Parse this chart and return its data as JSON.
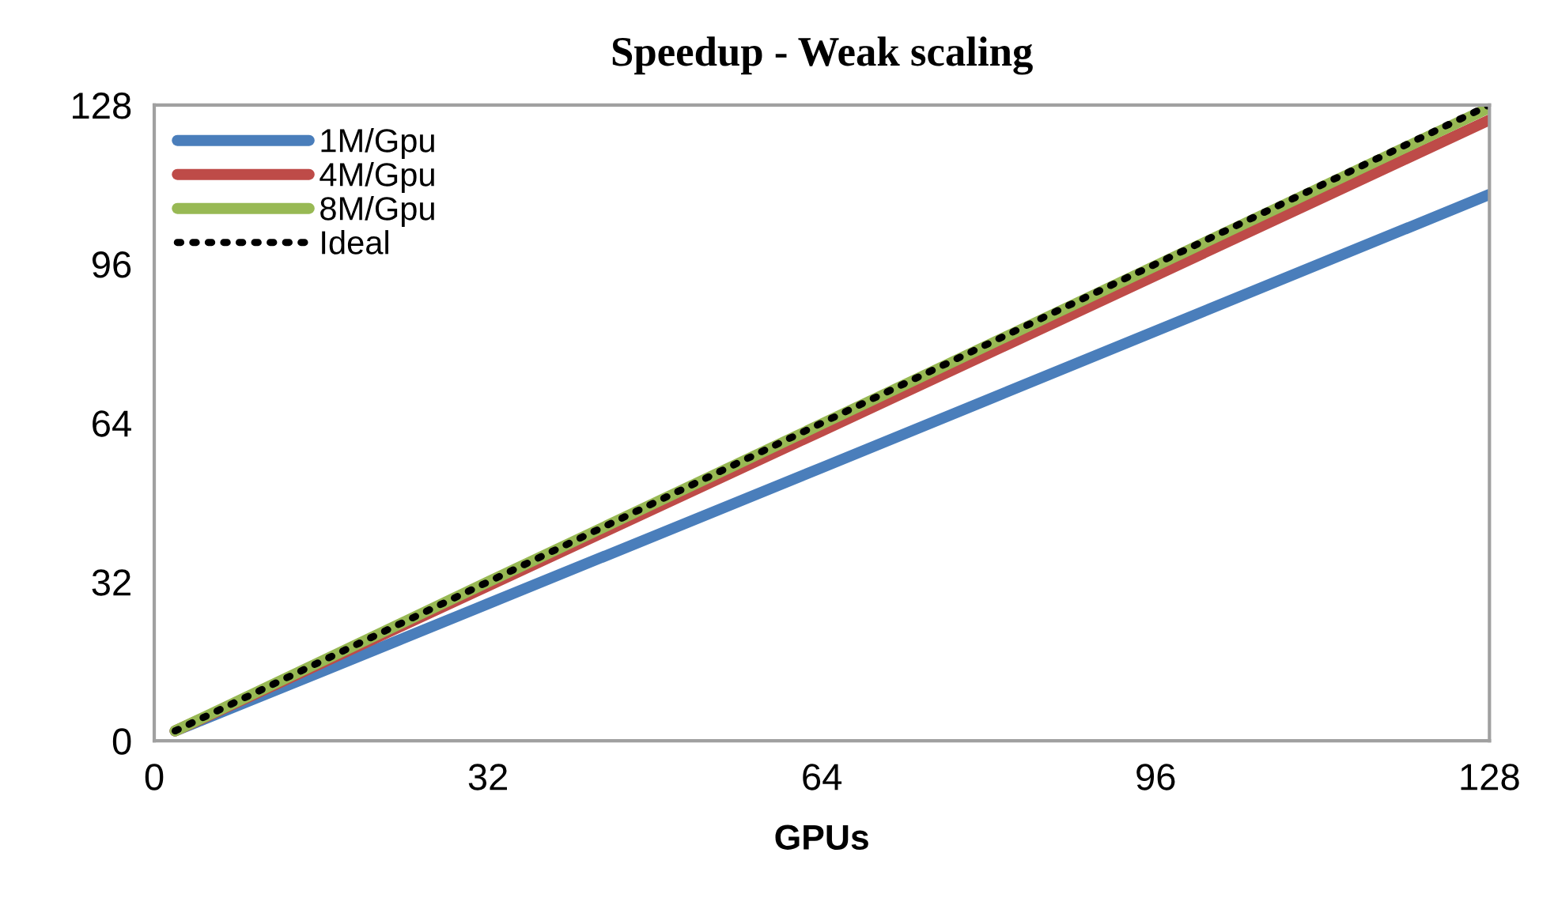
{
  "chart_data": {
    "type": "line",
    "title": "Speedup - Weak scaling",
    "xlabel": "GPUs",
    "x": [
      2,
      4,
      8,
      16,
      32,
      64,
      128
    ],
    "series": [
      {
        "name": "1M/Gpu",
        "color": "#4a7ebb",
        "values": [
          2,
          3.7,
          7.1,
          13.9,
          27.6,
          55,
          110
        ]
      },
      {
        "name": "4M/Gpu",
        "color": "#be4b48",
        "values": [
          2,
          3.9,
          7.8,
          15.6,
          31.2,
          62.4,
          125
        ]
      },
      {
        "name": "8M/Gpu",
        "color": "#98b954",
        "values": [
          2,
          4,
          8,
          16,
          32,
          63.8,
          127.5
        ]
      },
      {
        "name": "Ideal",
        "color": "#000000",
        "line_style": "dotted",
        "values": [
          2,
          4,
          8,
          16,
          32,
          64,
          128
        ]
      }
    ],
    "xlim": [
      0,
      128
    ],
    "xticks": [
      0,
      32,
      64,
      96,
      128
    ],
    "ylim": [
      0,
      128
    ],
    "yticks": [
      0,
      32,
      64,
      96,
      128
    ],
    "grid": false,
    "legend": "top left",
    "marker": "none"
  }
}
